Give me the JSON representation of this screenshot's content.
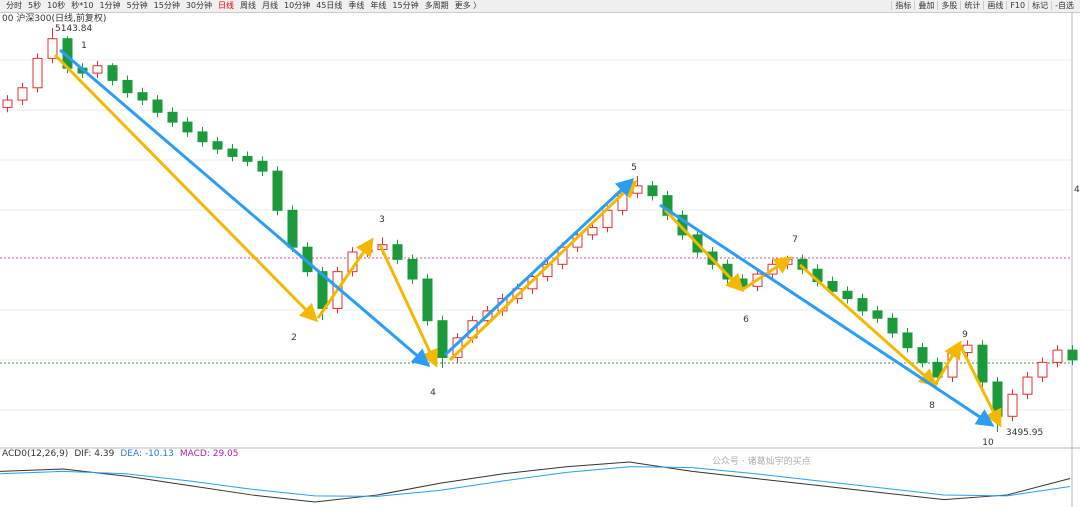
{
  "toolbar": {
    "left": [
      "分时",
      "5秒",
      "10秒",
      "秒*10",
      "1分钟",
      "5分钟",
      "15分钟",
      "30分钟",
      "日线",
      "周线",
      "月线",
      "10分钟",
      "45日线",
      "季线",
      "年线",
      "15分钟",
      "多周期",
      "更多 〉"
    ],
    "active": "日线",
    "right": [
      "指标",
      "叠加",
      "多股",
      "统计",
      "画线",
      "F10",
      "标记",
      "-自选"
    ]
  },
  "chart_data": {
    "type": "candlestick",
    "title": "00 沪深300(日线,前复权)",
    "ohlc": [
      [
        4820,
        4870,
        4800,
        4850
      ],
      [
        4850,
        4920,
        4830,
        4900
      ],
      [
        4900,
        5040,
        4880,
        5020
      ],
      [
        5020,
        5143.84,
        5000,
        5100
      ],
      [
        5100,
        5110,
        4960,
        4980
      ],
      [
        4980,
        5000,
        4940,
        4960
      ],
      [
        4960,
        5010,
        4940,
        4990
      ],
      [
        4990,
        5000,
        4910,
        4930
      ],
      [
        4930,
        4950,
        4860,
        4880
      ],
      [
        4880,
        4900,
        4830,
        4850
      ],
      [
        4850,
        4870,
        4780,
        4800
      ],
      [
        4800,
        4820,
        4740,
        4760
      ],
      [
        4760,
        4780,
        4700,
        4720
      ],
      [
        4720,
        4740,
        4660,
        4680
      ],
      [
        4680,
        4700,
        4630,
        4650
      ],
      [
        4650,
        4670,
        4600,
        4620
      ],
      [
        4620,
        4640,
        4580,
        4600
      ],
      [
        4600,
        4620,
        4540,
        4560
      ],
      [
        4560,
        4580,
        4380,
        4400
      ],
      [
        4400,
        4420,
        4230,
        4250
      ],
      [
        4250,
        4270,
        4130,
        4150
      ],
      [
        4150,
        4170,
        3953,
        4000
      ],
      [
        4000,
        4170,
        3980,
        4150
      ],
      [
        4150,
        4250,
        4130,
        4230
      ],
      [
        4230,
        4260,
        4210,
        4240
      ],
      [
        4240,
        4290,
        4220,
        4260
      ],
      [
        4260,
        4280,
        4180,
        4200
      ],
      [
        4200,
        4220,
        4100,
        4120
      ],
      [
        4120,
        4140,
        3930,
        3950
      ],
      [
        3950,
        3970,
        3757,
        3800
      ],
      [
        3800,
        3900,
        3780,
        3880
      ],
      [
        3880,
        3970,
        3860,
        3950
      ],
      [
        3950,
        4010,
        3930,
        3990
      ],
      [
        3990,
        4060,
        3970,
        4040
      ],
      [
        4040,
        4100,
        4020,
        4080
      ],
      [
        4080,
        4150,
        4060,
        4130
      ],
      [
        4130,
        4200,
        4110,
        4180
      ],
      [
        4180,
        4270,
        4160,
        4250
      ],
      [
        4250,
        4320,
        4230,
        4300
      ],
      [
        4300,
        4350,
        4280,
        4330
      ],
      [
        4330,
        4420,
        4310,
        4400
      ],
      [
        4400,
        4490,
        4380,
        4470
      ],
      [
        4470,
        4540,
        4450,
        4500
      ],
      [
        4500,
        4520,
        4440,
        4460
      ],
      [
        4460,
        4480,
        4360,
        4380
      ],
      [
        4380,
        4400,
        4280,
        4300
      ],
      [
        4300,
        4320,
        4210,
        4230
      ],
      [
        4230,
        4250,
        4160,
        4180
      ],
      [
        4180,
        4200,
        4100,
        4120
      ],
      [
        4120,
        4140,
        4070,
        4090
      ],
      [
        4090,
        4160,
        4070,
        4140
      ],
      [
        4140,
        4200,
        4120,
        4180
      ],
      [
        4180,
        4215,
        4160,
        4200
      ],
      [
        4200,
        4220,
        4140,
        4160
      ],
      [
        4160,
        4180,
        4090,
        4110
      ],
      [
        4110,
        4130,
        4050,
        4070
      ],
      [
        4070,
        4090,
        4020,
        4040
      ],
      [
        4040,
        4060,
        3970,
        3990
      ],
      [
        3990,
        4010,
        3940,
        3960
      ],
      [
        3960,
        3980,
        3880,
        3900
      ],
      [
        3900,
        3920,
        3820,
        3840
      ],
      [
        3840,
        3860,
        3760,
        3780
      ],
      [
        3780,
        3800,
        3690,
        3720
      ],
      [
        3720,
        3840,
        3700,
        3820
      ],
      [
        3820,
        3870,
        3800,
        3850
      ],
      [
        3850,
        3870,
        3680,
        3700
      ],
      [
        3700,
        3720,
        3495.95,
        3560
      ],
      [
        3560,
        3670,
        3540,
        3650
      ],
      [
        3650,
        3740,
        3630,
        3720
      ],
      [
        3720,
        3800,
        3700,
        3780
      ],
      [
        3780,
        3850,
        3760,
        3830
      ],
      [
        3830,
        3850,
        3770,
        3790
      ]
    ],
    "wave_labels": [
      "1",
      "2",
      "3",
      "4",
      "5",
      "6",
      "7",
      "8",
      "9",
      "10"
    ],
    "high_label": "5143.84",
    "low_label": "3495.95",
    "edge_label": "4",
    "indicator": {
      "name": "ACD0(12,26,9)",
      "dif_label": "DIF: 4.39",
      "dea_label": "DEA: -10.13",
      "macd_label": "MACD: 29.05",
      "dif": [
        20,
        25,
        10,
        -10,
        -30,
        -45,
        -30,
        -5,
        15,
        30,
        40,
        20,
        5,
        -10,
        -25,
        -40,
        -30,
        5
      ],
      "dea": [
        15,
        20,
        15,
        0,
        -18,
        -32,
        -33,
        -20,
        0,
        18,
        30,
        28,
        15,
        0,
        -15,
        -30,
        -32,
        -12
      ]
    }
  },
  "watermark": "公众号 · 诸葛灿宇的买点"
}
